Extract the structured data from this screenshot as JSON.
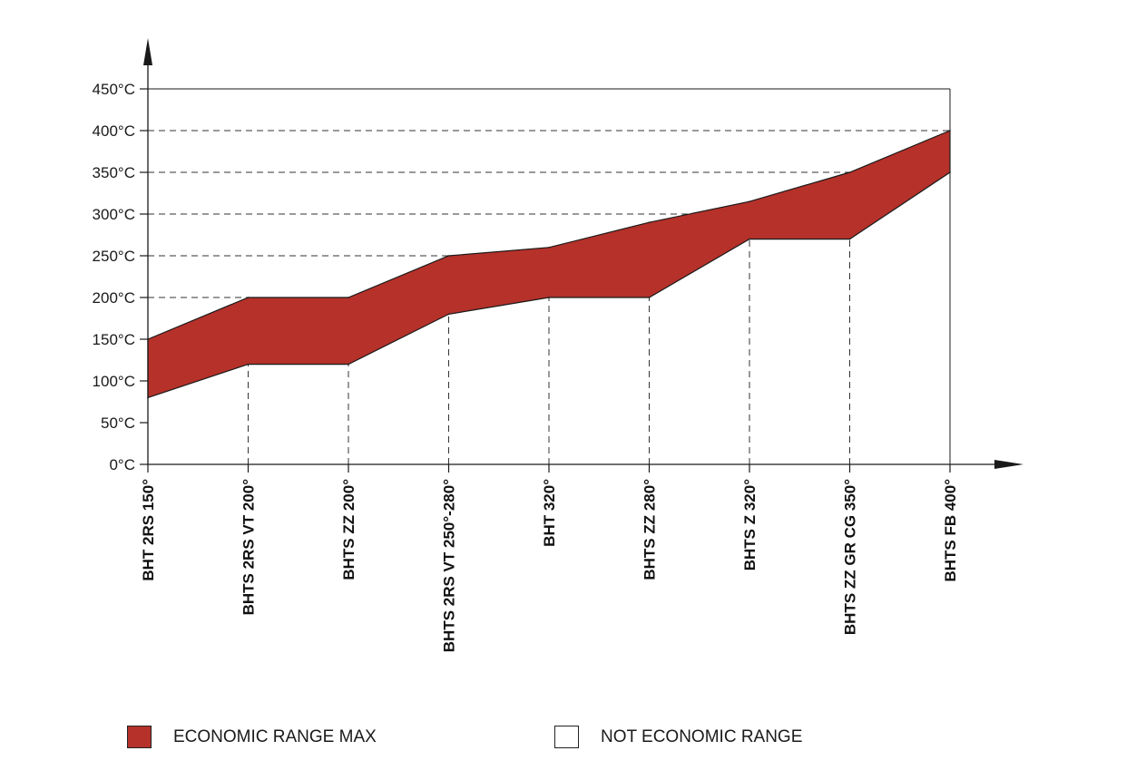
{
  "chart_data": {
    "type": "area",
    "categories": [
      "BHT 2RS 150°",
      "BHTS 2RS VT 200°",
      "BHTS ZZ 200°",
      "BHTS 2RS VT 250°-280°",
      "BHT 320°",
      "BHTS ZZ 280°",
      "BHTS Z 320°",
      "BHTS ZZ GR CG 350°",
      "BHTS FB 400°"
    ],
    "series": [
      {
        "name": "ECONOMIC RANGE MAX",
        "lower": [
          80,
          120,
          120,
          180,
          200,
          200,
          270,
          270,
          350
        ],
        "upper": [
          150,
          200,
          200,
          250,
          260,
          290,
          315,
          350,
          400
        ]
      }
    ],
    "y_ticks": [
      "0°C",
      "50°C",
      "100°C",
      "150°C",
      "200°C",
      "250°C",
      "300°C",
      "350°C",
      "400°C",
      "450°C"
    ],
    "ylim": [
      0,
      450
    ],
    "xlabel": "",
    "ylabel": "",
    "title": "",
    "legend_position": "bottom",
    "colors": {
      "range_fill": "#b5312a",
      "outline": "#1a1a1a"
    }
  },
  "legend": {
    "economic_label": "ECONOMIC RANGE MAX",
    "not_economic_label": "NOT ECONOMIC RANGE"
  }
}
